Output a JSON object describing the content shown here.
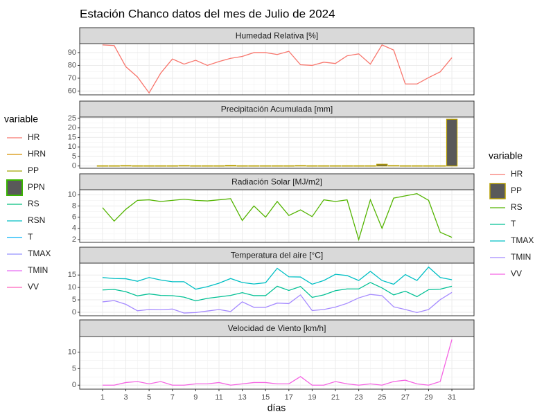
{
  "title": "Estación Chanco datos del mes de Julio de 2024",
  "x_label": "días",
  "left_legend": {
    "title": "variable",
    "entries": [
      {
        "name": "HR",
        "color": "#F8766D",
        "key": "line"
      },
      {
        "name": "HRN",
        "color": "#D89000",
        "key": "line"
      },
      {
        "name": "PP",
        "color": "#A3A500",
        "key": "line"
      },
      {
        "name": "PPN",
        "color": "#39B600",
        "key": "box",
        "fill": "#595959"
      },
      {
        "name": "RS",
        "color": "#00BF7D",
        "key": "line"
      },
      {
        "name": "RSN",
        "color": "#00BFC4",
        "key": "line"
      },
      {
        "name": "T",
        "color": "#00B0F6",
        "key": "line"
      },
      {
        "name": "TMAX",
        "color": "#9590FF",
        "key": "line"
      },
      {
        "name": "TMIN",
        "color": "#E76BF3",
        "key": "line"
      },
      {
        "name": "VV",
        "color": "#FF62BC",
        "key": "line"
      }
    ]
  },
  "right_legend": {
    "title": "variable"
  },
  "chart_data": [
    {
      "type": "line",
      "title": "Humedad Relativa [%]",
      "x": [
        1,
        2,
        3,
        4,
        5,
        6,
        7,
        8,
        9,
        10,
        11,
        12,
        13,
        14,
        15,
        16,
        17,
        18,
        19,
        20,
        21,
        22,
        23,
        24,
        25,
        26,
        27,
        28,
        29,
        30,
        31
      ],
      "xlim": [
        -0.96,
        32.9
      ],
      "xticks": [
        1,
        3,
        5,
        7,
        9,
        11,
        13,
        15,
        17,
        19,
        21,
        23,
        25,
        27,
        29,
        31
      ],
      "ylim": [
        57,
        97
      ],
      "yticks": [
        60,
        70,
        80,
        90
      ],
      "grid": true,
      "series": [
        {
          "name": "HR",
          "color": "#F8766D",
          "values": [
            96,
            95.5,
            79,
            71,
            58.5,
            74,
            85,
            81,
            84,
            80,
            83,
            85.5,
            87,
            90,
            90,
            88.5,
            91,
            80.5,
            80,
            82.5,
            81.5,
            87.5,
            89,
            81,
            96,
            92,
            65.5,
            65.5,
            70.5,
            75,
            86
          ]
        }
      ]
    },
    {
      "type": "bar",
      "title": "Precipitación Acumulada [mm]",
      "x": [
        1,
        2,
        3,
        4,
        5,
        6,
        7,
        8,
        9,
        10,
        11,
        12,
        13,
        14,
        15,
        16,
        17,
        18,
        19,
        20,
        21,
        22,
        23,
        24,
        25,
        26,
        27,
        28,
        29,
        30,
        31
      ],
      "xlim": [
        -0.96,
        32.9
      ],
      "xticks": [
        1,
        3,
        5,
        7,
        9,
        11,
        13,
        15,
        17,
        19,
        21,
        23,
        25,
        27,
        29,
        31
      ],
      "ylim": [
        -1.2,
        25.7
      ],
      "yticks": [
        0,
        5,
        10,
        15,
        20,
        25
      ],
      "grid": true,
      "series": [
        {
          "name": "PP",
          "color": "#B79F00",
          "fill": "#595959",
          "values": [
            0.1,
            0.1,
            0.2,
            0.1,
            0.1,
            0.1,
            0.1,
            0.2,
            0.1,
            0.1,
            0.1,
            0.3,
            0.1,
            0.1,
            0.1,
            0.1,
            0.1,
            0.2,
            0.1,
            0.1,
            0.1,
            0.1,
            0.1,
            0.1,
            0.9,
            0.2,
            0.1,
            0.1,
            0.1,
            0.1,
            24.5
          ]
        }
      ]
    },
    {
      "type": "line",
      "title": "Radiación Solar [MJ/m2]",
      "x": [
        1,
        2,
        3,
        4,
        5,
        6,
        7,
        8,
        9,
        10,
        11,
        12,
        13,
        14,
        15,
        16,
        17,
        18,
        19,
        20,
        21,
        22,
        23,
        24,
        25,
        26,
        27,
        28,
        29,
        30,
        31
      ],
      "xlim": [
        -0.96,
        32.9
      ],
      "xticks": [
        1,
        3,
        5,
        7,
        9,
        11,
        13,
        15,
        17,
        19,
        21,
        23,
        25,
        27,
        29,
        31
      ],
      "ylim": [
        1.5,
        10.9
      ],
      "yticks": [
        2,
        4,
        6,
        8,
        10
      ],
      "grid": true,
      "series": [
        {
          "name": "RS",
          "color": "#53B400",
          "values": [
            7.7,
            5.3,
            7.4,
            9.0,
            9.1,
            8.8,
            9.0,
            9.2,
            9.0,
            8.9,
            9.1,
            9.3,
            5.4,
            8.0,
            6.0,
            8.8,
            6.3,
            7.3,
            6.1,
            9.1,
            8.8,
            9.1,
            2.0,
            9.1,
            4.0,
            9.4,
            9.8,
            10.2,
            9.0,
            3.3,
            2.4
          ]
        }
      ]
    },
    {
      "type": "line",
      "title": "Temperatura del aire [°C]",
      "x": [
        1,
        2,
        3,
        4,
        5,
        6,
        7,
        8,
        9,
        10,
        11,
        12,
        13,
        14,
        15,
        16,
        17,
        18,
        19,
        20,
        21,
        22,
        23,
        24,
        25,
        26,
        27,
        28,
        29,
        30,
        31
      ],
      "xlim": [
        -0.96,
        32.9
      ],
      "xticks": [
        1,
        3,
        5,
        7,
        9,
        11,
        13,
        15,
        17,
        19,
        21,
        23,
        25,
        27,
        29,
        31
      ],
      "ylim": [
        -1.4,
        19.8
      ],
      "yticks": [
        0,
        5,
        10,
        15
      ],
      "grid": true,
      "series": [
        {
          "name": "T",
          "color": "#00C094",
          "values": [
            9,
            9.2,
            8.3,
            6.6,
            7.4,
            6.8,
            6.7,
            6.1,
            4.6,
            5.6,
            6.2,
            6.8,
            7.9,
            6.7,
            6.7,
            10.5,
            8.8,
            10.4,
            6.0,
            7.0,
            8.7,
            9.4,
            9.4,
            12.0,
            9.8,
            7.0,
            8.5,
            6.3,
            9.1,
            9.3,
            10.5
          ]
        },
        {
          "name": "TMAX",
          "color": "#00BFC4",
          "values": [
            14,
            13.6,
            13.5,
            12.5,
            14,
            13,
            12.3,
            12.3,
            9.3,
            10.3,
            11.7,
            13.6,
            12,
            11.4,
            11.9,
            17.7,
            14.3,
            14.2,
            11.3,
            12.8,
            15.3,
            14.8,
            12.8,
            16.5,
            12.8,
            11.3,
            15.2,
            12.8,
            18.2,
            14,
            13.1
          ]
        },
        {
          "name": "TMIN",
          "color": "#A58AFF",
          "values": [
            4.2,
            4.7,
            3.2,
            0.6,
            1.1,
            1.0,
            1.3,
            -0.3,
            -0.1,
            0.5,
            1.1,
            0.3,
            4.2,
            2.0,
            2.0,
            3.7,
            3.5,
            7.0,
            0.7,
            1.1,
            2.1,
            3.6,
            5.8,
            7.2,
            6.7,
            2.2,
            1.1,
            -0.1,
            1.1,
            5.1,
            8.0
          ]
        }
      ]
    },
    {
      "type": "line",
      "title": "Velocidad de Viento [km/h]",
      "x": [
        1,
        2,
        3,
        4,
        5,
        6,
        7,
        8,
        9,
        10,
        11,
        12,
        13,
        14,
        15,
        16,
        17,
        18,
        19,
        20,
        21,
        22,
        23,
        24,
        25,
        26,
        27,
        28,
        29,
        30,
        31
      ],
      "xlim": [
        -0.96,
        32.9
      ],
      "xticks": [
        1,
        3,
        5,
        7,
        9,
        11,
        13,
        15,
        17,
        19,
        21,
        23,
        25,
        27,
        29,
        31
      ],
      "ylim": [
        -1.2,
        14.7
      ],
      "yticks": [
        0,
        5,
        10
      ],
      "grid": true,
      "series": [
        {
          "name": "VV",
          "color": "#F564E3",
          "values": [
            0,
            0,
            0.8,
            1.1,
            0.4,
            1.1,
            0,
            0,
            0.4,
            0.4,
            0.8,
            0,
            0.4,
            0.8,
            0.8,
            0.4,
            0.4,
            2.6,
            0,
            0,
            1.1,
            0.4,
            0,
            0.4,
            0,
            1.1,
            1.5,
            0.4,
            0,
            1.1,
            13.8
          ]
        }
      ]
    }
  ]
}
